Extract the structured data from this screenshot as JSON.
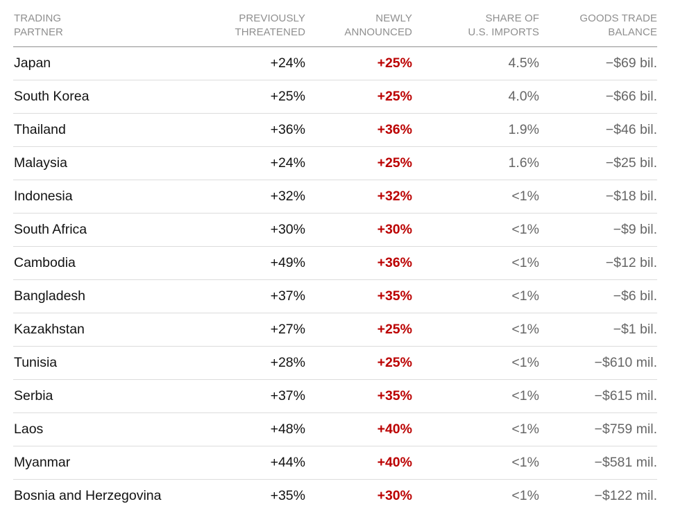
{
  "chart_data": {
    "type": "table",
    "headers": {
      "partner": [
        "TRADING",
        "PARTNER"
      ],
      "previously_threatened": [
        "PREVIOUSLY",
        "THREATENED"
      ],
      "newly_announced": [
        "NEWLY",
        "ANNOUNCED"
      ],
      "share_of_imports": [
        "SHARE OF",
        "U.S. IMPORTS"
      ],
      "goods_trade_balance": [
        "GOODS TRADE",
        "BALANCE"
      ]
    },
    "rows": [
      {
        "partner": "Japan",
        "previous": "+24%",
        "new": "+25%",
        "share": "4.5%",
        "balance": "−$69 bil."
      },
      {
        "partner": "South Korea",
        "previous": "+25%",
        "new": "+25%",
        "share": "4.0%",
        "balance": "−$66 bil."
      },
      {
        "partner": "Thailand",
        "previous": "+36%",
        "new": "+36%",
        "share": "1.9%",
        "balance": "−$46 bil."
      },
      {
        "partner": "Malaysia",
        "previous": "+24%",
        "new": "+25%",
        "share": "1.6%",
        "balance": "−$25 bil."
      },
      {
        "partner": "Indonesia",
        "previous": "+32%",
        "new": "+32%",
        "share": "<1%",
        "balance": "−$18 bil."
      },
      {
        "partner": "South Africa",
        "previous": "+30%",
        "new": "+30%",
        "share": "<1%",
        "balance": "−$9 bil."
      },
      {
        "partner": "Cambodia",
        "previous": "+49%",
        "new": "+36%",
        "share": "<1%",
        "balance": "−$12 bil."
      },
      {
        "partner": "Bangladesh",
        "previous": "+37%",
        "new": "+35%",
        "share": "<1%",
        "balance": "−$6 bil."
      },
      {
        "partner": "Kazakhstan",
        "previous": "+27%",
        "new": "+25%",
        "share": "<1%",
        "balance": "−$1 bil."
      },
      {
        "partner": "Tunisia",
        "previous": "+28%",
        "new": "+25%",
        "share": "<1%",
        "balance": "−$610 mil."
      },
      {
        "partner": "Serbia",
        "previous": "+37%",
        "new": "+35%",
        "share": "<1%",
        "balance": "−$615 mil."
      },
      {
        "partner": "Laos",
        "previous": "+48%",
        "new": "+40%",
        "share": "<1%",
        "balance": "−$759 mil."
      },
      {
        "partner": "Myanmar",
        "previous": "+44%",
        "new": "+40%",
        "share": "<1%",
        "balance": "−$581 mil."
      },
      {
        "partner": "Bosnia and Herzegovina",
        "previous": "+35%",
        "new": "+30%",
        "share": "<1%",
        "balance": "−$122 mil."
      }
    ]
  },
  "colors": {
    "header_text": "#8f8f8f",
    "body_text": "#121212",
    "muted_text": "#666666",
    "highlight": "#bb0000",
    "header_rule": "#8f8f8f",
    "row_rule": "#dcdcdc"
  }
}
